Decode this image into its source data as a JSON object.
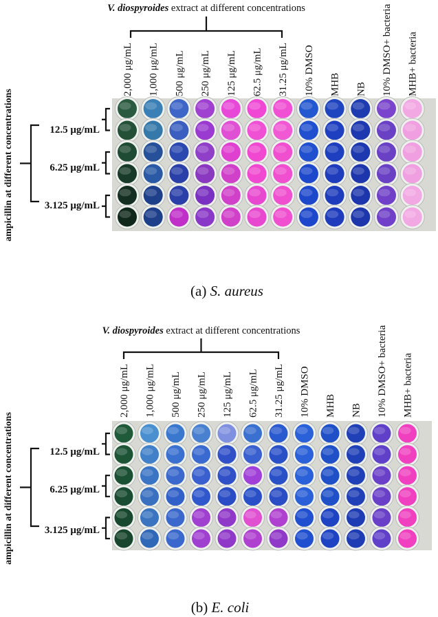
{
  "figure": {
    "panels": [
      {
        "caption_prefix": "(a) ",
        "caption_species": "S. aureus",
        "title_italic": "V. diospyroides",
        "title_rest": " extract at different concentrations",
        "side_label": "ampicillin at different concentrations",
        "row_labels": [
          "12.5 μg/mL",
          "6.25 μg/mL",
          "3.125 μg/mL"
        ],
        "column_labels": [
          "2,000 μg/mL",
          "1,000 μg/mL",
          "500 μg/mL",
          "250 μg/mL",
          "125 μg/mL",
          "62.5 μg/mL",
          "31.25 μg/mL",
          "10% DMSO",
          "MHB",
          "NB",
          "10% DMSO+ bacteria",
          "MHB+ bacteria"
        ],
        "well_colors": [
          [
            "#2a5a40",
            "#3a7fb5",
            "#3d66c8",
            "#a040d0",
            "#e848d8",
            "#f048d4",
            "#f050d4",
            "#2458d0",
            "#1e44c0",
            "#1e3cb0",
            "#7a44cc",
            "#f2a8e2"
          ],
          [
            "#245038",
            "#3579aa",
            "#3a5fc0",
            "#9a3ad0",
            "#e050d4",
            "#f050d4",
            "#f058d4",
            "#2050d0",
            "#1e40c0",
            "#1e38b0",
            "#6a40c4",
            "#f0a0e0"
          ],
          [
            "#1f4a33",
            "#26519a",
            "#2a48b0",
            "#9040c8",
            "#e040d0",
            "#f048d0",
            "#f050d0",
            "#2050d0",
            "#1e40c0",
            "#1e38b0",
            "#6a40c4",
            "#f0a0e0"
          ],
          [
            "#183b29",
            "#2a5aa5",
            "#2a40a8",
            "#8a38c0",
            "#d040c8",
            "#f048d0",
            "#f050d0",
            "#1e48cc",
            "#1e3cbc",
            "#1e36ac",
            "#6a40c4",
            "#f0a0e0"
          ],
          [
            "#142f22",
            "#1e3f8a",
            "#2a40a8",
            "#7a30c0",
            "#d040c8",
            "#e848d0",
            "#f050d0",
            "#1e48cc",
            "#1e3cbc",
            "#1e36ac",
            "#7040c8",
            "#f2a8e2"
          ],
          [
            "#10281c",
            "#1e3f8a",
            "#c02fc8",
            "#8a38c8",
            "#d040c8",
            "#e848d0",
            "#f050d0",
            "#1e48cc",
            "#1e3cbc",
            "#1e36ac",
            "#7040c8",
            "#f2a8e2"
          ]
        ]
      },
      {
        "caption_prefix": "(b) ",
        "caption_species": "E. coli",
        "title_italic": "V. diospyroides",
        "title_rest": " extract at different concentrations",
        "side_label": "ampicillin at different concentrations",
        "row_labels": [
          "12.5 μg/mL",
          "6.25 μg/mL",
          "3.125 μg/mL"
        ],
        "column_labels": [
          "2,000 μg/mL",
          "1,000 μg/mL",
          "500 μg/mL",
          "250 μg/mL",
          "125 μg/mL",
          "62.5 μg/mL",
          "31.25 μg/mL",
          "10% DMSO",
          "MHB",
          "NB",
          "10% DMSO+ bacteria",
          "MHB+ bacteria"
        ],
        "well_colors": [
          [
            "#1f5a3a",
            "#4a90d0",
            "#3a78d0",
            "#4a80d0",
            "#8090e0",
            "#3a70d0",
            "#2a5ad0",
            "#2a60d8",
            "#2050c8",
            "#2040b8",
            "#6040c8",
            "#f040c0"
          ],
          [
            "#1d5436",
            "#4080c8",
            "#3a70d0",
            "#3a6ad0",
            "#3050c8",
            "#3a60d0",
            "#2a50c8",
            "#2a60d8",
            "#2050c8",
            "#2040b8",
            "#6040c8",
            "#f040c0"
          ],
          [
            "#1b5034",
            "#3a74c4",
            "#3a68cc",
            "#3a60d0",
            "#3050c8",
            "#a040d8",
            "#2a50c8",
            "#2a60d8",
            "#2050c8",
            "#2040b8",
            "#6a40c8",
            "#f040c0"
          ],
          [
            "#194c32",
            "#3a70c0",
            "#3060c8",
            "#3058cc",
            "#2a4cc4",
            "#2a50c8",
            "#2a4cc4",
            "#2a60d8",
            "#2050c8",
            "#2040b8",
            "#6a40c8",
            "#f040c0"
          ],
          [
            "#18482f",
            "#3a74c0",
            "#3a68cc",
            "#a040d0",
            "#9038c8",
            "#e050d0",
            "#b040d0",
            "#2050d0",
            "#1e44c4",
            "#1e3cb4",
            "#6a40c8",
            "#f040c0"
          ],
          [
            "#17452d",
            "#3068b8",
            "#3a68cc",
            "#a040d0",
            "#9038c8",
            "#b040d0",
            "#9038c8",
            "#2050d0",
            "#1e44c4",
            "#1e3cb4",
            "#6040c8",
            "#f040c0"
          ]
        ]
      }
    ]
  }
}
